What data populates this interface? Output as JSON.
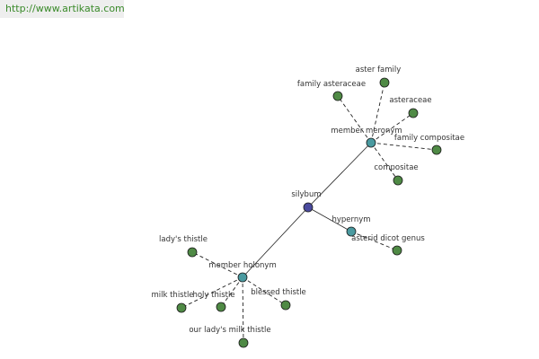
{
  "header": {
    "url": "http://www.artikata.com"
  },
  "nodes": [
    {
      "label": "silybum"
    },
    {
      "label": "member meronym"
    },
    {
      "label": "member holonym"
    },
    {
      "label": "hypernym"
    },
    {
      "label": "family asteraceae"
    },
    {
      "label": "aster family"
    },
    {
      "label": "asteraceae"
    },
    {
      "label": "family compositae"
    },
    {
      "label": "compositae"
    },
    {
      "label": "asterid dicot genus"
    },
    {
      "label": "lady's thistle"
    },
    {
      "label": "milk thistle"
    },
    {
      "label": "holy thistle"
    },
    {
      "label": "blessed thistle"
    },
    {
      "label": "our lady's milk thistle"
    }
  ]
}
